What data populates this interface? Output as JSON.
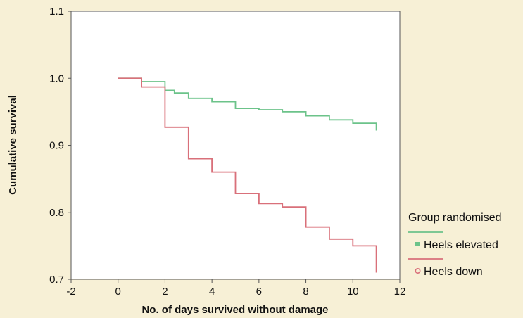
{
  "chart_data": {
    "type": "line",
    "step": true,
    "xlabel": "No. of days survived without damage",
    "ylabel": "Cumulative survival",
    "xlim": [
      -2,
      12
    ],
    "ylim": [
      0.7,
      1.1
    ],
    "x_ticks": [
      "-2",
      "0",
      "2",
      "4",
      "6",
      "8",
      "10",
      "12"
    ],
    "y_ticks": [
      "0.7",
      "0.8",
      "0.9",
      "1.0",
      "1.1"
    ],
    "grid": false,
    "legend": {
      "title": "Group randomised",
      "placement": "right"
    },
    "series": [
      {
        "name": "Heels elevated",
        "color": "#6cc38a",
        "marker": "square",
        "x": [
          0,
          1,
          2,
          2.4,
          3,
          4,
          5,
          6,
          7,
          8,
          9,
          10,
          11,
          11
        ],
        "y": [
          1.0,
          0.995,
          0.982,
          0.978,
          0.97,
          0.965,
          0.955,
          0.953,
          0.95,
          0.944,
          0.938,
          0.933,
          0.93,
          0.922
        ]
      },
      {
        "name": "Heels down",
        "color": "#d9707a",
        "marker": "circle",
        "x": [
          0,
          1,
          2,
          3,
          4,
          5,
          6,
          7,
          8,
          9,
          10,
          11,
          11
        ],
        "y": [
          1.0,
          0.987,
          0.927,
          0.88,
          0.86,
          0.828,
          0.813,
          0.808,
          0.778,
          0.76,
          0.75,
          0.75,
          0.71
        ]
      }
    ]
  }
}
